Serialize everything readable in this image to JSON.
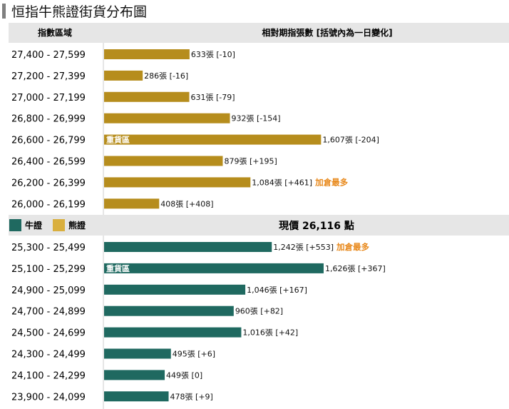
{
  "title": "恒指牛熊證街貨分布圖",
  "colors": {
    "bear": "#b68d1d",
    "bull": "#1f6960",
    "bear_legend": "#d9af3e",
    "header_bg": "#e6e6e6",
    "note": "#e8891c"
  },
  "chart_data": {
    "type": "bar",
    "orientation": "horizontal",
    "unit": "張",
    "columns": {
      "range": "指數區域",
      "value": "相對期指張數 [括號內為一日變化]"
    },
    "heavy_label": "重貨區",
    "most_added_label": "加倉最多",
    "current_price_label": "現價 26,116 點",
    "legend": [
      {
        "name": "牛證",
        "color": "#1f6960"
      },
      {
        "name": "熊證",
        "color": "#d9af3e"
      }
    ],
    "bear": [
      {
        "range": "27,400 - 27,599",
        "value": 633,
        "change": "-10"
      },
      {
        "range": "27,200 - 27,399",
        "value": 286,
        "change": "-16"
      },
      {
        "range": "27,000 - 27,199",
        "value": 631,
        "change": "-79"
      },
      {
        "range": "26,800 - 26,999",
        "value": 932,
        "change": "-154"
      },
      {
        "range": "26,600 - 26,799",
        "value": 1607,
        "change": "-204",
        "heavy": true
      },
      {
        "range": "26,400 - 26,599",
        "value": 879,
        "change": "+195"
      },
      {
        "range": "26,200 - 26,399",
        "value": 1084,
        "change": "+461",
        "most_added": true
      },
      {
        "range": "26,000 - 26,199",
        "value": 408,
        "change": "+408"
      }
    ],
    "bull": [
      {
        "range": "25,300 - 25,499",
        "value": 1242,
        "change": "+553",
        "most_added": true
      },
      {
        "range": "25,100 - 25,299",
        "value": 1626,
        "change": "+367",
        "heavy": true
      },
      {
        "range": "24,900 - 25,099",
        "value": 1046,
        "change": "+167"
      },
      {
        "range": "24,700 - 24,899",
        "value": 960,
        "change": "+82"
      },
      {
        "range": "24,500 - 24,699",
        "value": 1016,
        "change": "+42"
      },
      {
        "range": "24,300 - 24,499",
        "value": 495,
        "change": "+6"
      },
      {
        "range": "24,100 - 24,299",
        "value": 449,
        "change": "0"
      },
      {
        "range": "23,900 - 24,099",
        "value": 478,
        "change": "+9"
      }
    ]
  }
}
